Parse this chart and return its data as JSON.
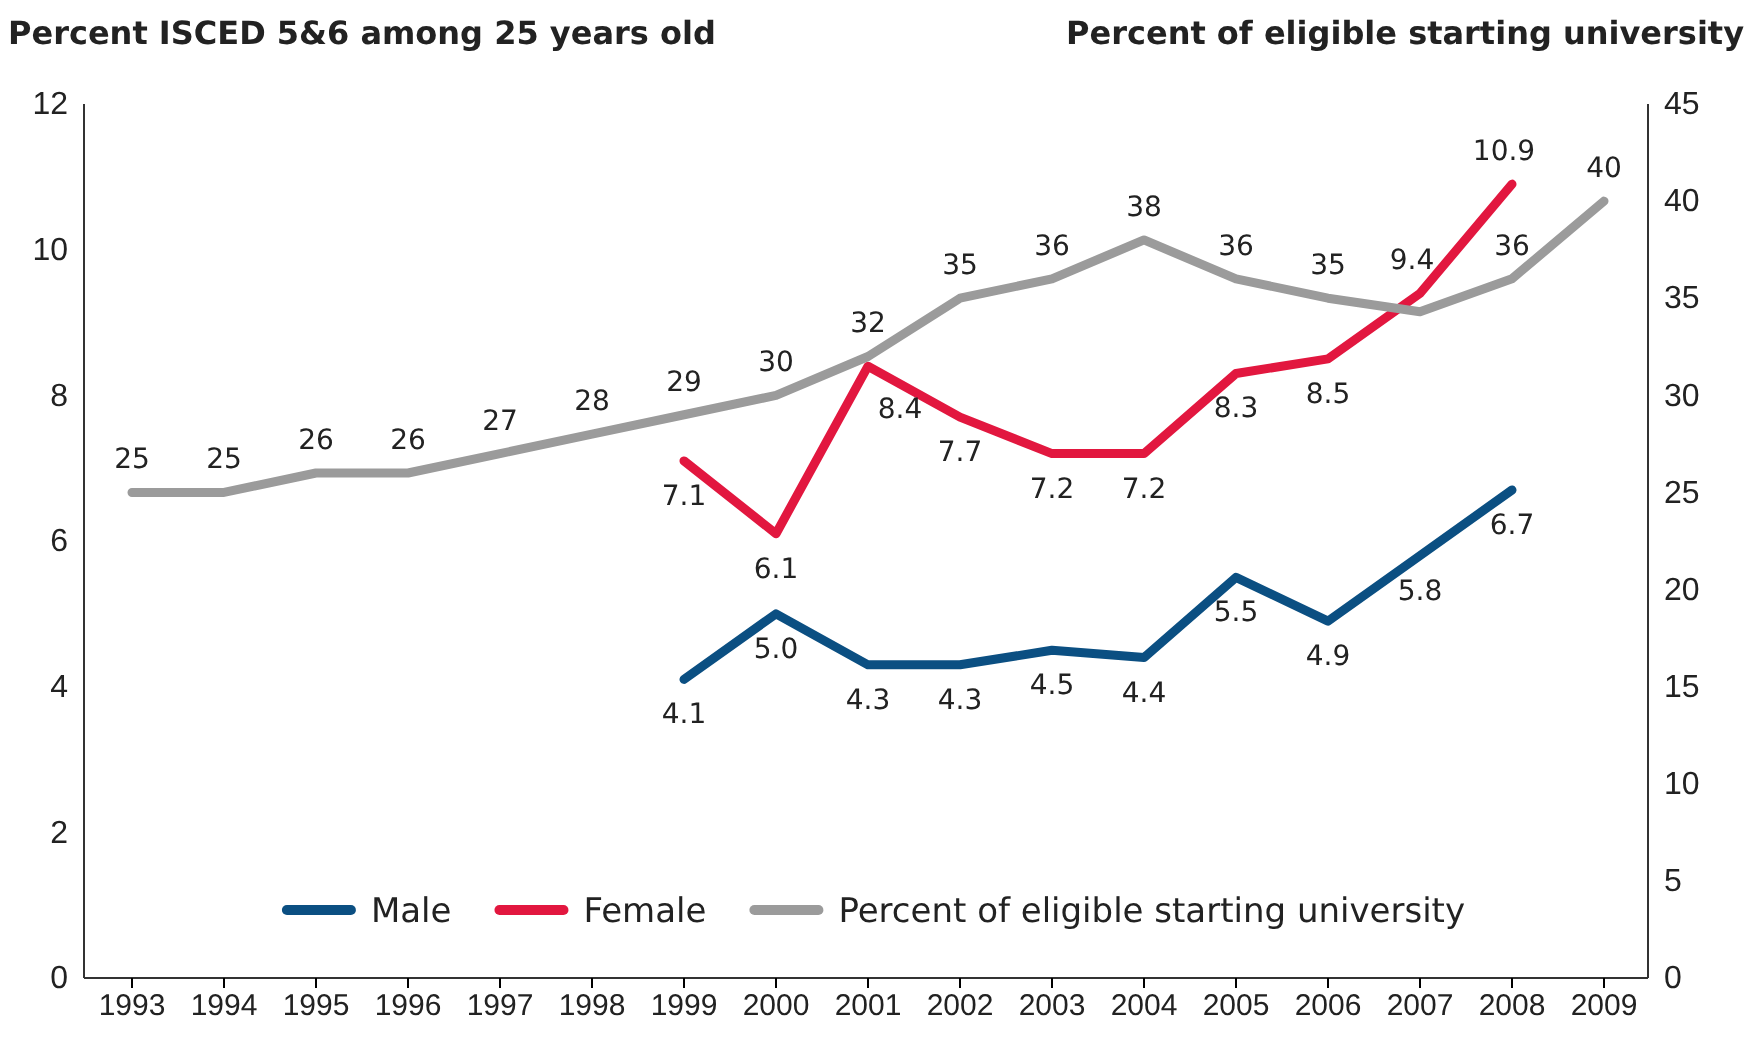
{
  "chart_data": {
    "type": "line",
    "ylabel": "Percent ISCED 5&6 among 25 years old",
    "y2label": "Percent of eligible starting university",
    "categories": [
      "1993",
      "1994",
      "1995",
      "1996",
      "1997",
      "1998",
      "1999",
      "2000",
      "2001",
      "2002",
      "2003",
      "2004",
      "2005",
      "2006",
      "2007",
      "2008",
      "2009"
    ],
    "ylim": [
      0,
      12
    ],
    "yticks": [
      0,
      2,
      4,
      6,
      8,
      10,
      12
    ],
    "y2lim": [
      0,
      45
    ],
    "y2ticks": [
      0,
      5,
      10,
      15,
      20,
      25,
      30,
      35,
      40,
      45
    ],
    "grid": false,
    "legend": "bottom",
    "line_style": "solid",
    "marker": "none",
    "series": [
      {
        "name": "Male",
        "color": "#0b4f82",
        "values": [
          null,
          null,
          null,
          null,
          null,
          null,
          4.1,
          5.0,
          4.3,
          4.3,
          4.5,
          4.4,
          5.5,
          4.9,
          5.8,
          6.7,
          null
        ],
        "value_labels": [
          null,
          null,
          null,
          null,
          null,
          null,
          "4.1",
          "5.0",
          "4.3",
          "4.3",
          "4.5",
          "4.4",
          "5.5",
          "4.9",
          "5.8",
          "6.7",
          null
        ]
      },
      {
        "name": "Female",
        "color": "#e2173f",
        "values": [
          null,
          null,
          null,
          null,
          null,
          null,
          7.1,
          6.1,
          8.4,
          7.7,
          7.2,
          7.2,
          8.3,
          8.5,
          9.4,
          10.9,
          null
        ],
        "value_labels": [
          null,
          null,
          null,
          null,
          null,
          null,
          "7.1",
          "6.1",
          "8.4",
          "7.7",
          "7.2",
          "7.2",
          "8.3",
          "8.5",
          "9.4",
          "10.9",
          null
        ]
      },
      {
        "name": "Percent of eligible starting university",
        "color": "#9b9b9b",
        "axis": "y2",
        "values": [
          25,
          25,
          26,
          26,
          27,
          28,
          29,
          30,
          32,
          35,
          36,
          38,
          36,
          35,
          34.3,
          36,
          40
        ],
        "value_labels": [
          "25",
          "25",
          "26",
          "26",
          "27",
          "28",
          "29",
          "30",
          "32",
          "35",
          "36",
          "38",
          "36",
          "35",
          null,
          "36",
          "40"
        ]
      }
    ]
  }
}
